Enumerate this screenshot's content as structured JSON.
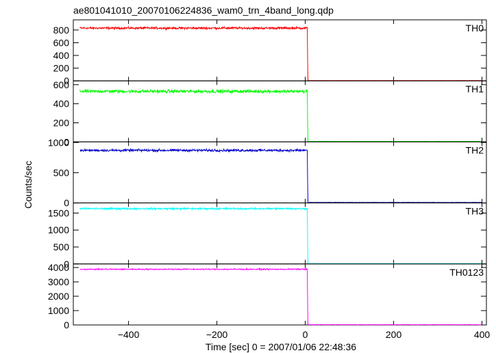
{
  "title": "ae801041010_20070106224836_wam0_trn_4band_long.qdp",
  "ylabel": "Counts/sec",
  "xlabel": "Time [sec] 0 = 2007/01/06 22:48:36",
  "chart_data": {
    "type": "line",
    "title": "ae801041010_20070106224836_wam0_trn_4band_long.qdp",
    "xlabel": "Time [sec] 0 = 2007/01/06 22:48:36",
    "ylabel": "Counts/sec",
    "xlim": [
      -525,
      410
    ],
    "x_ticks": [
      -400,
      -200,
      0,
      200,
      400
    ],
    "x_tick_labels": [
      "−400",
      "−200",
      "0",
      "200",
      "400"
    ],
    "drop_time": 5,
    "panels": [
      {
        "name": "TH0",
        "color": "#ff0000",
        "ylim": [
          0,
          960
        ],
        "y_ticks": [
          0,
          200,
          400,
          600,
          800
        ],
        "pre_level": 830,
        "noise": 25,
        "post_level": 5
      },
      {
        "name": "TH1",
        "color": "#00ff00",
        "ylim": [
          0,
          640
        ],
        "y_ticks": [
          0,
          200,
          400,
          600
        ],
        "pre_level": 530,
        "noise": 25,
        "post_level": 5
      },
      {
        "name": "TH2",
        "color": "#0000cc",
        "ylim": [
          0,
          1010
        ],
        "y_ticks": [
          0,
          500,
          1000
        ],
        "pre_level": 870,
        "noise": 30,
        "post_level": 8
      },
      {
        "name": "TH3",
        "color": "#00ffff",
        "ylim": [
          0,
          1800
        ],
        "y_ticks": [
          0,
          500,
          1000,
          1500
        ],
        "pre_level": 1630,
        "noise": 40,
        "post_level": 10
      },
      {
        "name": "TH0123",
        "color": "#ff00ff",
        "ylim": [
          0,
          4250
        ],
        "y_ticks": [
          0,
          1000,
          2000,
          3000,
          4000
        ],
        "pre_level": 3880,
        "noise": 60,
        "post_level": 20
      }
    ]
  }
}
